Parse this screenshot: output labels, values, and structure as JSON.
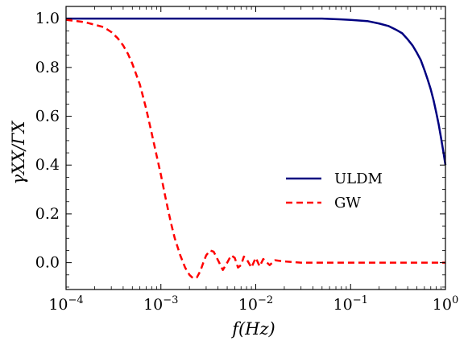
{
  "chart_data": {
    "type": "line",
    "xlabel": "f(Hz)",
    "ylabel": "γXX/ΓX",
    "x_scale": "log",
    "xlim": [
      0.0001,
      1
    ],
    "ylim": [
      -0.11,
      1.05
    ],
    "x_ticks": [
      {
        "value": 0.0001,
        "base": "10",
        "exp": "−4"
      },
      {
        "value": 0.001,
        "base": "10",
        "exp": "−3"
      },
      {
        "value": 0.01,
        "base": "10",
        "exp": "−2"
      },
      {
        "value": 0.1,
        "base": "10",
        "exp": "−1"
      },
      {
        "value": 1,
        "base": "10",
        "exp": "0"
      }
    ],
    "y_ticks": [
      {
        "value": 0.0,
        "label": "0.0"
      },
      {
        "value": 0.2,
        "label": "0.2"
      },
      {
        "value": 0.4,
        "label": "0.4"
      },
      {
        "value": 0.6,
        "label": "0.6"
      },
      {
        "value": 0.8,
        "label": "0.8"
      },
      {
        "value": 1.0,
        "label": "1.0"
      }
    ],
    "legend_position": "center-right",
    "series": [
      {
        "name": "ULDM",
        "color": "#000080",
        "dash": "solid",
        "x": [
          0.0001,
          0.001,
          0.01,
          0.05,
          0.08,
          0.1,
          0.15,
          0.2,
          0.25,
          0.3,
          0.35,
          0.4,
          0.45,
          0.5,
          0.55,
          0.6,
          0.65,
          0.7,
          0.75,
          0.8,
          0.85,
          0.9,
          0.95,
          1.0
        ],
        "y": [
          1.0,
          1.0,
          1.0,
          1.0,
          0.997,
          0.995,
          0.99,
          0.98,
          0.97,
          0.955,
          0.94,
          0.915,
          0.89,
          0.86,
          0.83,
          0.79,
          0.75,
          0.71,
          0.665,
          0.615,
          0.565,
          0.51,
          0.455,
          0.4
        ]
      },
      {
        "name": "GW",
        "color": "#ff0000",
        "dash": "dashed",
        "x": [
          0.0001,
          0.00013,
          0.00016,
          0.0002,
          0.00025,
          0.0003,
          0.00035,
          0.0004,
          0.00045,
          0.0005,
          0.0006,
          0.0007,
          0.0008,
          0.0009,
          0.001,
          0.0011,
          0.0012,
          0.0013,
          0.0014,
          0.0016,
          0.0018,
          0.002,
          0.0022,
          0.0024,
          0.0026,
          0.0028,
          0.003,
          0.0033,
          0.0036,
          0.004,
          0.0045,
          0.005,
          0.0055,
          0.006,
          0.0065,
          0.007,
          0.0075,
          0.008,
          0.009,
          0.01,
          0.011,
          0.012,
          0.014,
          0.016,
          0.02,
          0.03,
          0.05,
          0.1,
          0.2,
          0.5,
          1.0
        ],
        "y": [
          0.995,
          0.99,
          0.985,
          0.975,
          0.965,
          0.945,
          0.92,
          0.89,
          0.855,
          0.815,
          0.73,
          0.63,
          0.53,
          0.44,
          0.36,
          0.28,
          0.21,
          0.15,
          0.1,
          0.03,
          -0.02,
          -0.05,
          -0.065,
          -0.06,
          -0.035,
          0.0,
          0.03,
          0.05,
          0.045,
          0.01,
          -0.03,
          0.0,
          0.03,
          0.02,
          -0.02,
          -0.01,
          0.025,
          0.015,
          -0.02,
          0.02,
          -0.015,
          0.015,
          -0.01,
          0.01,
          0.005,
          0.0,
          0.0,
          0.0,
          0.0,
          0.0,
          0.0
        ]
      }
    ]
  }
}
